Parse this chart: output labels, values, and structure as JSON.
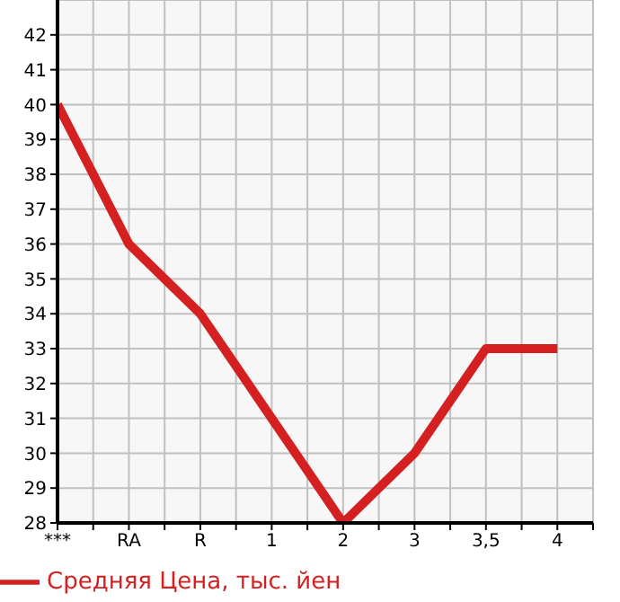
{
  "chart_data": {
    "type": "line",
    "categories": [
      "***",
      "RA",
      "R",
      "1",
      "2",
      "3",
      "3,5",
      "4"
    ],
    "series": [
      {
        "name": "Средняя Цена, тыс. йен",
        "color": "#d42020",
        "values": [
          40,
          36,
          34,
          31,
          28,
          30,
          33,
          33
        ]
      }
    ],
    "ylim": [
      28,
      43
    ],
    "yticks": [
      28,
      29,
      30,
      31,
      32,
      33,
      34,
      35,
      36,
      37,
      38,
      39,
      40,
      41,
      42
    ],
    "grid": true,
    "legend": "bottom left",
    "marker": "none"
  }
}
